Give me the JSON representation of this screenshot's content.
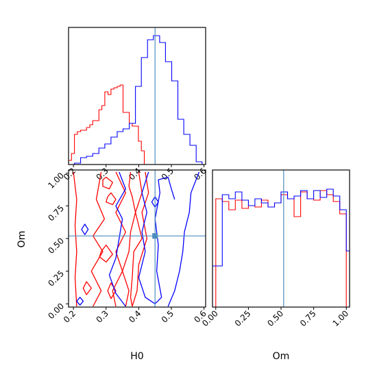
{
  "chart_data": {
    "type": "corner",
    "parameters": [
      "H0",
      "Om"
    ],
    "truth": {
      "H0": 0.45,
      "Om": 0.52
    },
    "colors": {
      "red": "#ff0000",
      "blue": "#0000ff",
      "truth": "#4c8cbf"
    },
    "panels": [
      {
        "id": "H0-marginal",
        "type": "step-histogram",
        "xlabel": "",
        "xlim": [
          0.185,
          0.605
        ],
        "xticks": [
          0.2,
          0.3,
          0.4,
          0.5,
          0.6
        ],
        "y_ticks_visible": false,
        "series": [
          {
            "color": "red",
            "bin_edges": [
              0.185,
              0.194,
              0.203,
              0.212,
              0.222,
              0.231,
              0.24,
              0.25,
              0.259,
              0.268,
              0.278,
              0.287,
              0.296,
              0.306,
              0.315,
              0.324,
              0.334,
              0.343,
              0.352,
              0.362,
              0.371,
              0.38,
              0.39,
              0.399,
              0.408,
              0.417
            ],
            "values": [
              0.03,
              0.08,
              0.22,
              0.24,
              0.25,
              0.25,
              0.27,
              0.29,
              0.32,
              0.32,
              0.4,
              0.43,
              0.53,
              0.51,
              0.55,
              0.56,
              0.57,
              0.58,
              0.38,
              0.38,
              0.3,
              0.28,
              0.28,
              0.17,
              0.1
            ]
          },
          {
            "color": "blue",
            "bin_edges": [
              0.185,
              0.203,
              0.222,
              0.24,
              0.259,
              0.278,
              0.296,
              0.315,
              0.334,
              0.352,
              0.371,
              0.39,
              0.408,
              0.427,
              0.445,
              0.464,
              0.482,
              0.501,
              0.52,
              0.538,
              0.557,
              0.576,
              0.594
            ],
            "values": [
              0.0,
              0.01,
              0.05,
              0.06,
              0.08,
              0.12,
              0.15,
              0.2,
              0.24,
              0.26,
              0.3,
              0.57,
              0.78,
              0.91,
              0.94,
              0.89,
              0.75,
              0.61,
              0.33,
              0.22,
              0.14,
              0.02
            ]
          }
        ]
      },
      {
        "id": "Om-marginal",
        "type": "step-histogram",
        "xlabel": "Om",
        "xlim": [
          -0.025,
          1.025
        ],
        "xticks": [
          "0.00",
          "0.25",
          "0.50",
          "0.75",
          "1.00"
        ],
        "y_ticks_visible": false,
        "series": [
          {
            "color": "red",
            "bin_edges": [
              0.0,
              0.05,
              0.1,
              0.15,
              0.2,
              0.25,
              0.3,
              0.35,
              0.4,
              0.45,
              0.5,
              0.55,
              0.6,
              0.65,
              0.7,
              0.75,
              0.8,
              0.85,
              0.9,
              0.95,
              1.0
            ],
            "values": [
              0.79,
              0.77,
              0.71,
              0.78,
              0.72,
              0.74,
              0.73,
              0.78,
              0.73,
              0.76,
              0.82,
              0.79,
              0.66,
              0.84,
              0.79,
              0.78,
              0.85,
              0.82,
              0.77,
              0.68
            ]
          },
          {
            "color": "blue",
            "bin_edges": [
              -0.025,
              0.0,
              0.05,
              0.1,
              0.15,
              0.2,
              0.25,
              0.3,
              0.35,
              0.4,
              0.45,
              0.5,
              0.55,
              0.6,
              0.65,
              0.7,
              0.75,
              0.8,
              0.85,
              0.9,
              0.95,
              1.0,
              1.025
            ],
            "values": [
              0.3,
              0.3,
              0.82,
              0.79,
              0.84,
              0.78,
              0.74,
              0.79,
              0.76,
              0.73,
              0.76,
              0.84,
              0.79,
              0.81,
              0.85,
              0.79,
              0.85,
              0.8,
              0.86,
              0.81,
              0.71,
              0.41
            ]
          }
        ]
      },
      {
        "id": "H0-Om-joint",
        "type": "contour",
        "xlabel": "H0",
        "ylabel": "Om",
        "xlim": [
          0.185,
          0.605
        ],
        "ylim": [
          -0.025,
          1.025
        ],
        "xticks": [
          0.2,
          0.3,
          0.4,
          0.5,
          0.6
        ],
        "yticks": [
          "0.00",
          "0.25",
          "0.50",
          "0.75",
          "1.00"
        ],
        "series": [
          {
            "color": "red",
            "contours": [
              [
                [
                  0.2,
                  1.01
                ],
                [
                  0.21,
                  0.8
                ],
                [
                  0.205,
                  0.6
                ],
                [
                  0.21,
                  0.4
                ],
                [
                  0.205,
                  0.2
                ],
                [
                  0.21,
                  -0.02
                ]
              ],
              [
                [
                  0.285,
                  1.01
                ],
                [
                  0.27,
                  0.8
                ],
                [
                  0.295,
                  0.65
                ],
                [
                  0.26,
                  0.52
                ],
                [
                  0.29,
                  0.4
                ],
                [
                  0.255,
                  0.25
                ],
                [
                  0.285,
                  0.1
                ],
                [
                  0.26,
                  -0.02
                ]
              ],
              [
                [
                  0.33,
                  1.01
                ],
                [
                  0.36,
                  0.85
                ],
                [
                  0.33,
                  0.7
                ],
                [
                  0.36,
                  0.55
                ],
                [
                  0.33,
                  0.4
                ],
                [
                  0.35,
                  0.25
                ],
                [
                  0.32,
                  0.1
                ],
                [
                  0.33,
                  -0.02
                ]
              ],
              [
                [
                  0.375,
                  1.01
                ],
                [
                  0.37,
                  0.9
                ],
                [
                  0.38,
                  0.82
                ],
                [
                  0.39,
                  0.7
                ],
                [
                  0.375,
                  0.55
                ],
                [
                  0.37,
                  0.4
                ],
                [
                  0.35,
                  0.25
                ],
                [
                  0.37,
                  0.1
                ],
                [
                  0.36,
                  -0.02
                ]
              ],
              [
                [
                  0.4,
                  1.01
                ],
                [
                  0.41,
                  0.85
                ],
                [
                  0.39,
                  0.7
                ],
                [
                  0.41,
                  0.5
                ],
                [
                  0.385,
                  0.4
                ],
                [
                  0.38,
                  0.2
                ],
                [
                  0.375,
                  0.05
                ],
                [
                  0.38,
                  -0.02
                ]
              ],
              [
                [
                  0.42,
                  1.01
                ],
                [
                  0.43,
                  0.85
                ],
                [
                  0.41,
                  0.7
                ],
                [
                  0.425,
                  0.5
                ],
                [
                  0.4,
                  0.3
                ],
                [
                  0.395,
                  0.1
                ],
                [
                  0.38,
                  -0.02
                ]
              ]
            ],
            "closed_contours": [
              [
                [
                  0.29,
                  0.95
                ],
                [
                  0.3,
                  0.97
                ],
                [
                  0.32,
                  0.93
                ],
                [
                  0.31,
                  0.88
                ],
                [
                  0.29,
                  0.9
                ]
              ],
              [
                [
                  0.305,
                  0.82
                ],
                [
                  0.315,
                  0.85
                ],
                [
                  0.33,
                  0.8
                ],
                [
                  0.32,
                  0.76
                ],
                [
                  0.3,
                  0.78
                ]
              ],
              [
                [
                  0.285,
                  0.4
                ],
                [
                  0.3,
                  0.45
                ],
                [
                  0.32,
                  0.38
                ],
                [
                  0.3,
                  0.32
                ],
                [
                  0.28,
                  0.36
                ]
              ],
              [
                [
                  0.23,
                  0.12
                ],
                [
                  0.24,
                  0.17
                ],
                [
                  0.255,
                  0.12
                ],
                [
                  0.24,
                  0.07
                ]
              ],
              [
                [
                  0.305,
                  0.1
                ],
                [
                  0.315,
                  0.16
                ],
                [
                  0.33,
                  0.1
                ],
                [
                  0.315,
                  0.04
                ]
              ]
            ]
          },
          {
            "color": "blue",
            "contours": [
              [
                [
                  0.34,
                  1.01
                ],
                [
                  0.36,
                  0.88
                ],
                [
                  0.33,
                  0.75
                ],
                [
                  0.35,
                  0.65
                ],
                [
                  0.34,
                  0.5
                ],
                [
                  0.33,
                  0.35
                ],
                [
                  0.31,
                  0.22
                ],
                [
                  0.33,
                  0.08
                ],
                [
                  0.36,
                  -0.02
                ]
              ],
              [
                [
                  0.43,
                  1.01
                ],
                [
                  0.41,
                  0.85
                ],
                [
                  0.425,
                  0.7
                ],
                [
                  0.41,
                  0.55
                ],
                [
                  0.42,
                  0.4
                ],
                [
                  0.4,
                  0.2
                ],
                [
                  0.42,
                  0.05
                ],
                [
                  0.45,
                  0.0
                ],
                [
                  0.47,
                  0.05
                ],
                [
                  0.455,
                  0.25
                ],
                [
                  0.46,
                  0.45
                ],
                [
                  0.45,
                  0.65
                ],
                [
                  0.465,
                  0.85
                ],
                [
                  0.46,
                  0.95
                ],
                [
                  0.49,
                  0.97
                ],
                [
                  0.5,
                  0.88
                ],
                [
                  0.51,
                  0.8
                ]
              ],
              [
                [
                  0.585,
                  1.01
                ],
                [
                  0.56,
                  0.85
                ],
                [
                  0.555,
                  0.7
                ],
                [
                  0.54,
                  0.55
                ],
                [
                  0.535,
                  0.4
                ],
                [
                  0.525,
                  0.25
                ],
                [
                  0.51,
                  0.1
                ],
                [
                  0.49,
                  -0.02
                ]
              ]
            ],
            "closed_contours": [
              [
                [
                  0.225,
                  0.57
                ],
                [
                  0.235,
                  0.61
                ],
                [
                  0.245,
                  0.57
                ],
                [
                  0.235,
                  0.53
                ]
              ],
              [
                [
                  0.44,
                  0.78
                ],
                [
                  0.45,
                  0.82
                ],
                [
                  0.46,
                  0.78
                ],
                [
                  0.45,
                  0.74
                ]
              ],
              [
                [
                  0.21,
                  0.02
                ],
                [
                  0.22,
                  0.05
                ],
                [
                  0.23,
                  0.02
                ],
                [
                  0.22,
                  -0.01
                ]
              ]
            ]
          }
        ]
      }
    ]
  }
}
